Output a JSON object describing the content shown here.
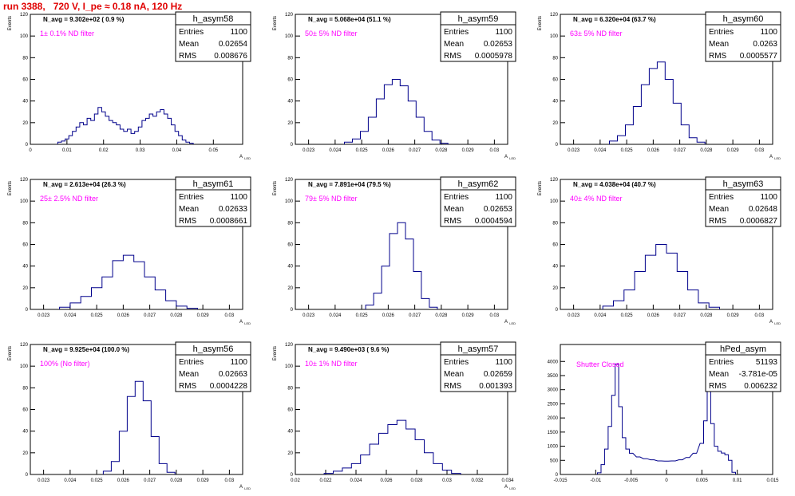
{
  "page_title": "run 3388,   720 V, I_pe ≈ 0.18 nA, 120 Hz",
  "colors": {
    "hist_line": "#00008b",
    "label": "#ff00ff",
    "title": "#e00000",
    "axis": "#000000"
  },
  "chart_data": [
    {
      "type": "histogram",
      "name": "h_asym58",
      "nlabel": "N_avg = 9.302e+02 ( 0.9 %)",
      "filter": "1± 0.1% ND filter",
      "stats": {
        "entries": "1100",
        "mean": "0.02654",
        "rms": "0.008676"
      },
      "ylabel": "Events",
      "xlabel": "A_LED",
      "xlim": [
        0,
        0.058
      ],
      "ylim": [
        0,
        120
      ],
      "xticks": [
        0,
        0.01,
        0.02,
        0.03,
        0.04,
        0.05
      ],
      "xtick_labels": [
        "0",
        "0.01",
        "0.02",
        "0.03",
        "0.04",
        "0.05"
      ],
      "yticks": [
        0,
        20,
        40,
        60,
        80,
        100,
        120
      ],
      "x": [
        0.008,
        0.009,
        0.01,
        0.011,
        0.012,
        0.013,
        0.014,
        0.015,
        0.016,
        0.017,
        0.018,
        0.019,
        0.02,
        0.021,
        0.022,
        0.023,
        0.024,
        0.025,
        0.026,
        0.027,
        0.028,
        0.029,
        0.03,
        0.031,
        0.032,
        0.033,
        0.034,
        0.035,
        0.036,
        0.037,
        0.038,
        0.039,
        0.04,
        0.041,
        0.042,
        0.043,
        0.044
      ],
      "y": [
        2,
        3,
        5,
        8,
        12,
        16,
        20,
        18,
        24,
        22,
        28,
        34,
        30,
        26,
        22,
        20,
        18,
        14,
        12,
        14,
        10,
        12,
        16,
        22,
        24,
        28,
        26,
        30,
        32,
        28,
        24,
        18,
        12,
        8,
        4,
        2,
        1
      ]
    },
    {
      "type": "histogram",
      "name": "h_asym59",
      "nlabel": "N_avg = 5.068e+04 (51.1 %)",
      "filter": "50± 5% ND filter",
      "stats": {
        "entries": "1100",
        "mean": "0.02653",
        "rms": "0.0005978"
      },
      "ylabel": "Events",
      "xlabel": "A_LED",
      "xlim": [
        0.0225,
        0.0305
      ],
      "ylim": [
        0,
        120
      ],
      "xticks": [
        0.023,
        0.024,
        0.025,
        0.026,
        0.027,
        0.028,
        0.029,
        0.03
      ],
      "xtick_labels": [
        "0.023",
        "0.024",
        "0.025",
        "0.026",
        "0.027",
        "0.028",
        "0.029",
        "0.03"
      ],
      "yticks": [
        0,
        20,
        40,
        60,
        80,
        100,
        120
      ],
      "x": [
        0.0245,
        0.0248,
        0.0251,
        0.0254,
        0.0257,
        0.026,
        0.0263,
        0.0266,
        0.0269,
        0.0272,
        0.0275,
        0.0278,
        0.0281
      ],
      "y": [
        2,
        5,
        12,
        25,
        42,
        55,
        60,
        54,
        40,
        25,
        12,
        4,
        1
      ]
    },
    {
      "type": "histogram",
      "name": "h_asym60",
      "nlabel": "N_avg = 6.320e+04 (63.7 %)",
      "filter": "63± 5% ND filter",
      "stats": {
        "entries": "1100",
        "mean": "0.0263",
        "rms": "0.0005577"
      },
      "ylabel": "Events",
      "xlabel": "A_LED",
      "xlim": [
        0.0225,
        0.0305
      ],
      "ylim": [
        0,
        120
      ],
      "xticks": [
        0.023,
        0.024,
        0.025,
        0.026,
        0.027,
        0.028,
        0.029,
        0.03
      ],
      "xtick_labels": [
        "0.023",
        "0.024",
        "0.025",
        "0.026",
        "0.027",
        "0.028",
        "0.029",
        "0.03"
      ],
      "yticks": [
        0,
        20,
        40,
        60,
        80,
        100,
        120
      ],
      "x": [
        0.0245,
        0.0248,
        0.0251,
        0.0254,
        0.0257,
        0.026,
        0.0263,
        0.0266,
        0.0269,
        0.0272,
        0.0275,
        0.0278
      ],
      "y": [
        3,
        8,
        18,
        35,
        55,
        70,
        76,
        60,
        38,
        18,
        6,
        2
      ]
    },
    {
      "type": "histogram",
      "name": "h_asym61",
      "nlabel": "N_avg = 2.613e+04 (26.3 %)",
      "filter": "25± 2.5% ND filter",
      "stats": {
        "entries": "1100",
        "mean": "0.02633",
        "rms": "0.0008661"
      },
      "ylabel": "Events",
      "xlabel": "A_LED",
      "xlim": [
        0.0225,
        0.0305
      ],
      "ylim": [
        0,
        120
      ],
      "xticks": [
        0.023,
        0.024,
        0.025,
        0.026,
        0.027,
        0.028,
        0.029,
        0.03
      ],
      "xtick_labels": [
        "0.023",
        "0.024",
        "0.025",
        "0.026",
        "0.027",
        "0.028",
        "0.029",
        "0.03"
      ],
      "yticks": [
        0,
        20,
        40,
        60,
        80,
        100,
        120
      ],
      "x": [
        0.0238,
        0.0242,
        0.0246,
        0.025,
        0.0254,
        0.0258,
        0.0262,
        0.0266,
        0.027,
        0.0274,
        0.0278,
        0.0282,
        0.0286
      ],
      "y": [
        2,
        6,
        12,
        20,
        30,
        45,
        50,
        44,
        30,
        18,
        8,
        3,
        1
      ]
    },
    {
      "type": "histogram",
      "name": "h_asym62",
      "nlabel": "N_avg = 7.891e+04 (79.5 %)",
      "filter": "79± 5% ND filter",
      "stats": {
        "entries": "1100",
        "mean": "0.02653",
        "rms": "0.0004594"
      },
      "ylabel": "Events",
      "xlabel": "A_LED",
      "xlim": [
        0.0225,
        0.0305
      ],
      "ylim": [
        0,
        120
      ],
      "xticks": [
        0.023,
        0.024,
        0.025,
        0.026,
        0.027,
        0.028,
        0.029,
        0.03
      ],
      "xtick_labels": [
        "0.023",
        "0.024",
        "0.025",
        "0.026",
        "0.027",
        "0.028",
        "0.029",
        "0.03"
      ],
      "yticks": [
        0,
        20,
        40,
        60,
        80,
        100,
        120
      ],
      "x": [
        0.0253,
        0.0256,
        0.0259,
        0.0262,
        0.0265,
        0.0268,
        0.0271,
        0.0274,
        0.0277
      ],
      "y": [
        4,
        15,
        40,
        70,
        80,
        65,
        35,
        10,
        2
      ]
    },
    {
      "type": "histogram",
      "name": "h_asym63",
      "nlabel": "N_avg = 4.038e+04 (40.7 %)",
      "filter": "40± 4% ND filter",
      "stats": {
        "entries": "1100",
        "mean": "0.02648",
        "rms": "0.0006827"
      },
      "ylabel": "Events",
      "xlabel": "A_LED",
      "xlim": [
        0.0225,
        0.0305
      ],
      "ylim": [
        0,
        120
      ],
      "xticks": [
        0.023,
        0.024,
        0.025,
        0.026,
        0.027,
        0.028,
        0.029,
        0.03
      ],
      "xtick_labels": [
        "0.023",
        "0.024",
        "0.025",
        "0.026",
        "0.027",
        "0.028",
        "0.029",
        "0.03"
      ],
      "yticks": [
        0,
        20,
        40,
        60,
        80,
        100,
        120
      ],
      "x": [
        0.0243,
        0.0247,
        0.0251,
        0.0255,
        0.0259,
        0.0263,
        0.0267,
        0.0271,
        0.0275,
        0.0279,
        0.0283
      ],
      "y": [
        3,
        8,
        18,
        35,
        50,
        60,
        52,
        35,
        18,
        6,
        2
      ]
    },
    {
      "type": "histogram",
      "name": "h_asym56",
      "nlabel": "N_avg = 9.925e+04 (100.0 %)",
      "filter": "100% (No filter)",
      "stats": {
        "entries": "1100",
        "mean": "0.02663",
        "rms": "0.0004228"
      },
      "ylabel": "Events",
      "xlabel": "A_LED",
      "xlim": [
        0.0225,
        0.0305
      ],
      "ylim": [
        0,
        120
      ],
      "xticks": [
        0.023,
        0.024,
        0.025,
        0.026,
        0.027,
        0.028,
        0.029,
        0.03
      ],
      "xtick_labels": [
        "0.023",
        "0.024",
        "0.025",
        "0.026",
        "0.027",
        "0.028",
        "0.029",
        "0.03"
      ],
      "yticks": [
        0,
        20,
        40,
        60,
        80,
        100,
        120
      ],
      "x": [
        0.0254,
        0.0257,
        0.026,
        0.0263,
        0.0266,
        0.0269,
        0.0272,
        0.0275,
        0.0278
      ],
      "y": [
        3,
        12,
        40,
        72,
        86,
        68,
        35,
        10,
        2
      ]
    },
    {
      "type": "histogram",
      "name": "h_asym57",
      "nlabel": "N_avg = 9.490e+03 ( 9.6 %)",
      "filter": "10± 1% ND filter",
      "stats": {
        "entries": "1100",
        "mean": "0.02659",
        "rms": "0.001393"
      },
      "ylabel": "Events",
      "xlabel": "A_LED",
      "xlim": [
        0.02,
        0.034
      ],
      "ylim": [
        0,
        120
      ],
      "xticks": [
        0.02,
        0.022,
        0.024,
        0.026,
        0.028,
        0.03,
        0.032,
        0.034
      ],
      "xtick_labels": [
        "0.02",
        "0.022",
        "0.024",
        "0.026",
        "0.028",
        "0.03",
        "0.032",
        "0.034"
      ],
      "yticks": [
        0,
        20,
        40,
        60,
        80,
        100,
        120
      ],
      "x": [
        0.0222,
        0.0228,
        0.0234,
        0.024,
        0.0246,
        0.0252,
        0.0258,
        0.0264,
        0.027,
        0.0276,
        0.0282,
        0.0288,
        0.0294,
        0.03,
        0.0306
      ],
      "y": [
        1,
        3,
        6,
        10,
        18,
        28,
        38,
        46,
        50,
        42,
        32,
        20,
        10,
        4,
        1
      ]
    },
    {
      "type": "histogram",
      "name": "hPed_asym",
      "nlabel": "",
      "filter": "Shutter Closed",
      "stats": {
        "entries": "51193",
        "mean": "-3.781e-05",
        "rms": "0.006232"
      },
      "ylabel": "",
      "xlabel": "",
      "xlim": [
        -0.015,
        0.015
      ],
      "ylim": [
        0,
        4600
      ],
      "xticks": [
        -0.015,
        -0.01,
        -0.005,
        0,
        0.005,
        0.01,
        0.015
      ],
      "xtick_labels": [
        "-0.015",
        "-0.01",
        "-0.005",
        "0",
        "0.005",
        "0.01",
        "0.015"
      ],
      "yticks": [
        0,
        500,
        1000,
        1500,
        2000,
        2500,
        3000,
        3500,
        4000
      ],
      "x": [
        -0.0095,
        -0.009,
        -0.0085,
        -0.008,
        -0.0075,
        -0.007,
        -0.0065,
        -0.006,
        -0.0055,
        -0.005,
        -0.004,
        -0.003,
        -0.002,
        -0.001,
        0,
        0.001,
        0.002,
        0.003,
        0.004,
        0.005,
        0.0055,
        0.006,
        0.0065,
        0.007,
        0.0075,
        0.008,
        0.0085,
        0.009,
        0.0095
      ],
      "y": [
        60,
        350,
        900,
        1700,
        2800,
        3900,
        2400,
        1300,
        900,
        750,
        620,
        560,
        520,
        480,
        470,
        480,
        520,
        600,
        750,
        1100,
        1900,
        3100,
        1800,
        1000,
        820,
        760,
        700,
        500,
        80
      ]
    }
  ]
}
